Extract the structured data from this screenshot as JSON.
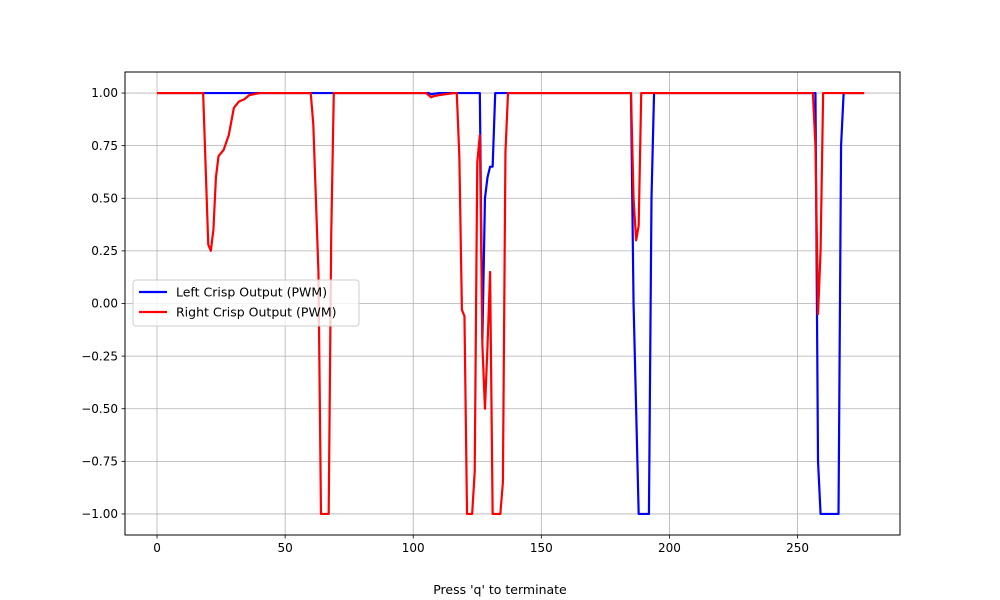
{
  "chart_data": {
    "type": "line",
    "title": "",
    "xlabel": "",
    "ylabel": "",
    "xlim": [
      -12.5,
      290
    ],
    "ylim": [
      -1.1,
      1.1
    ],
    "x_ticks": [
      0,
      50,
      100,
      150,
      200,
      250
    ],
    "y_ticks": [
      -1.0,
      -0.75,
      -0.5,
      -0.25,
      0.0,
      0.25,
      0.5,
      0.75,
      1.0
    ],
    "x_tick_labels": [
      "0",
      "50",
      "100",
      "150",
      "200",
      "250"
    ],
    "y_tick_labels": [
      "−1.00",
      "−0.75",
      "−0.50",
      "−0.25",
      "0.00",
      "0.25",
      "0.50",
      "0.75",
      "1.00"
    ],
    "grid": true,
    "legend_position": "center-left",
    "series": [
      {
        "name": "Left Crisp Output (PWM)",
        "color": "#0000ff",
        "points": [
          [
            0,
            1.0
          ],
          [
            106,
            1.0
          ],
          [
            107,
            0.995
          ],
          [
            110,
            1.0
          ],
          [
            126,
            1.0
          ],
          [
            127,
            -0.17
          ],
          [
            128,
            0.5
          ],
          [
            129,
            0.6
          ],
          [
            130,
            0.65
          ],
          [
            131,
            0.65
          ],
          [
            132,
            1.0
          ],
          [
            185,
            1.0
          ],
          [
            186,
            0.0
          ],
          [
            187,
            -0.5
          ],
          [
            188,
            -1.0
          ],
          [
            192,
            -1.0
          ],
          [
            193,
            0.5
          ],
          [
            194,
            1.0
          ],
          [
            257,
            1.0
          ],
          [
            258,
            -0.75
          ],
          [
            259,
            -1.0
          ],
          [
            266,
            -1.0
          ],
          [
            267,
            0.75
          ],
          [
            268,
            1.0
          ],
          [
            276,
            1.0
          ]
        ]
      },
      {
        "name": "Right Crisp Output (PWM)",
        "color": "#ff0000",
        "points": [
          [
            0,
            1.0
          ],
          [
            18,
            1.0
          ],
          [
            20,
            0.28
          ],
          [
            21,
            0.25
          ],
          [
            22,
            0.35
          ],
          [
            23,
            0.6
          ],
          [
            24,
            0.7
          ],
          [
            26,
            0.73
          ],
          [
            28,
            0.8
          ],
          [
            30,
            0.93
          ],
          [
            32,
            0.96
          ],
          [
            34,
            0.97
          ],
          [
            36,
            0.99
          ],
          [
            40,
            1.0
          ],
          [
            48,
            1.0
          ],
          [
            60,
            1.0
          ],
          [
            61,
            0.85
          ],
          [
            62,
            0.5
          ],
          [
            63,
            0.15
          ],
          [
            64,
            -1.0
          ],
          [
            67,
            -1.0
          ],
          [
            68,
            0.33
          ],
          [
            69,
            1.0
          ],
          [
            105,
            1.0
          ],
          [
            106,
            0.99
          ],
          [
            107,
            0.98
          ],
          [
            108,
            0.985
          ],
          [
            110,
            0.99
          ],
          [
            116,
            1.0
          ],
          [
            117,
            1.0
          ],
          [
            118,
            0.7
          ],
          [
            119,
            -0.03
          ],
          [
            120,
            -0.06
          ],
          [
            121,
            -1.0
          ],
          [
            123,
            -1.0
          ],
          [
            124,
            -0.8
          ],
          [
            125,
            0.67
          ],
          [
            126,
            0.8
          ],
          [
            127,
            -0.2
          ],
          [
            128,
            -0.5
          ],
          [
            129,
            -0.2
          ],
          [
            130,
            0.15
          ],
          [
            131,
            -1.0
          ],
          [
            134,
            -1.0
          ],
          [
            135,
            -0.85
          ],
          [
            136,
            0.72
          ],
          [
            137,
            1.0
          ],
          [
            185,
            1.0
          ],
          [
            186,
            0.5
          ],
          [
            187,
            0.3
          ],
          [
            188,
            0.37
          ],
          [
            189,
            1.0
          ],
          [
            256,
            1.0
          ],
          [
            257,
            0.75
          ],
          [
            258,
            -0.05
          ],
          [
            259,
            0.25
          ],
          [
            260,
            1.0
          ],
          [
            276,
            1.0
          ]
        ]
      }
    ],
    "footer": "Press 'q' to terminate"
  }
}
